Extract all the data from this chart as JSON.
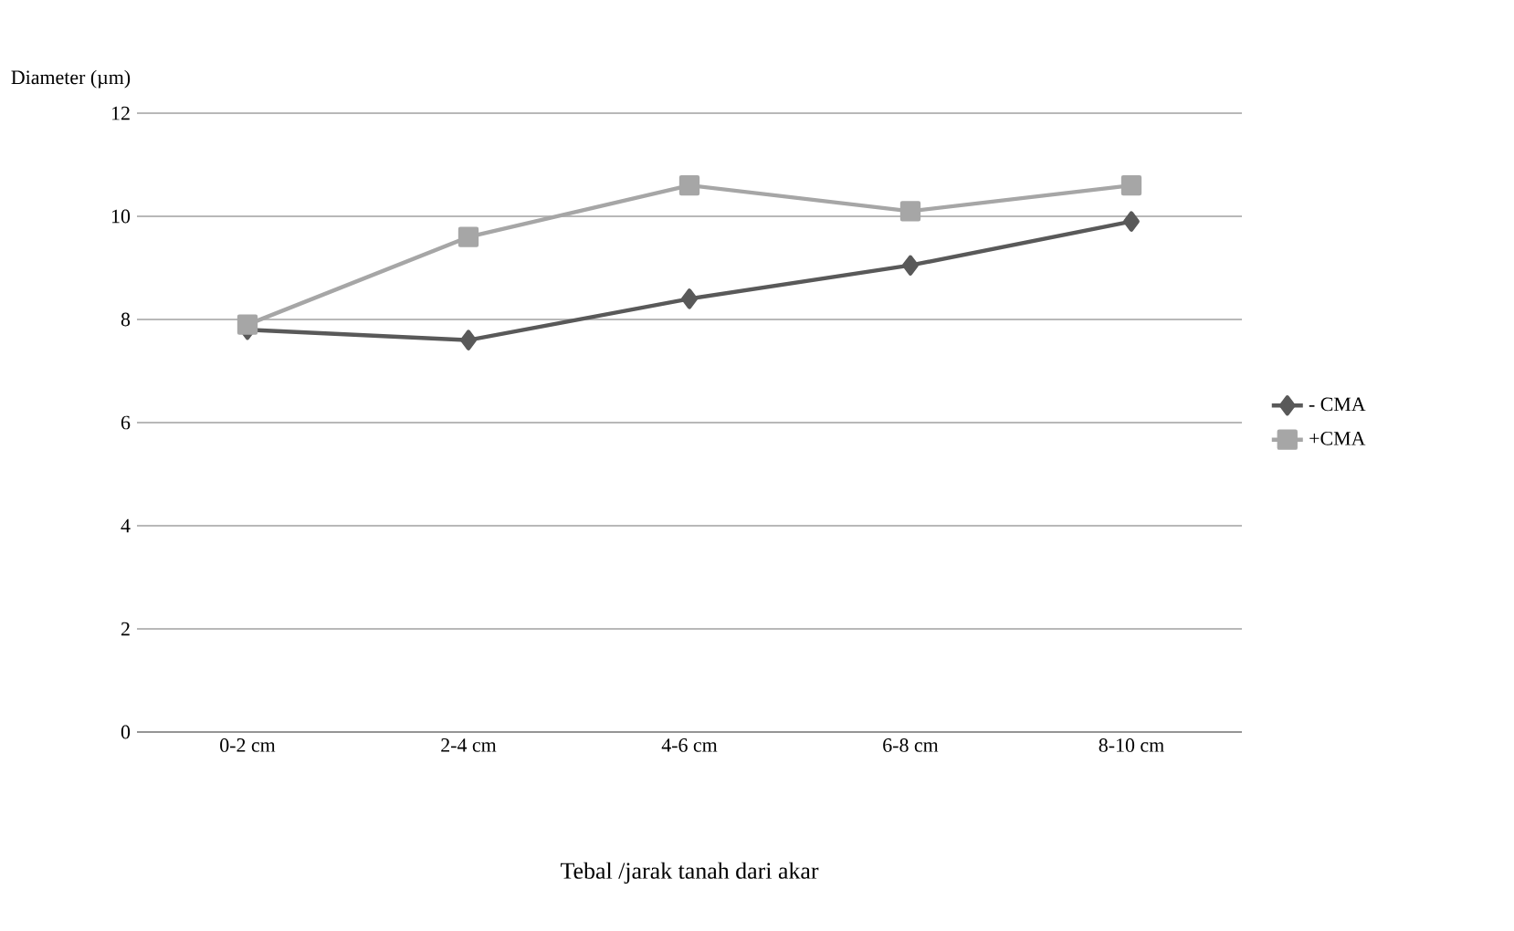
{
  "chart_data": {
    "type": "line",
    "xlabel": "Tebal /jarak tanah dari akar",
    "ylabel": "Diameter (µm)",
    "categories": [
      "0-2 cm",
      "2-4 cm",
      "4-6 cm",
      "6-8 cm",
      "8-10 cm"
    ],
    "series": [
      {
        "name": "- CMA",
        "color": "#595959",
        "marker": "diamond",
        "values": [
          7.8,
          7.6,
          8.4,
          9.05,
          9.9
        ]
      },
      {
        "name": "+CMA",
        "color": "#a6a6a6",
        "marker": "square",
        "values": [
          7.9,
          9.6,
          10.6,
          10.1,
          10.6
        ]
      }
    ],
    "ylim": [
      0,
      12
    ],
    "yticks": [
      0,
      2,
      4,
      6,
      8,
      10,
      12
    ],
    "grid": "y",
    "legend": "right",
    "line_style": "solid"
  }
}
